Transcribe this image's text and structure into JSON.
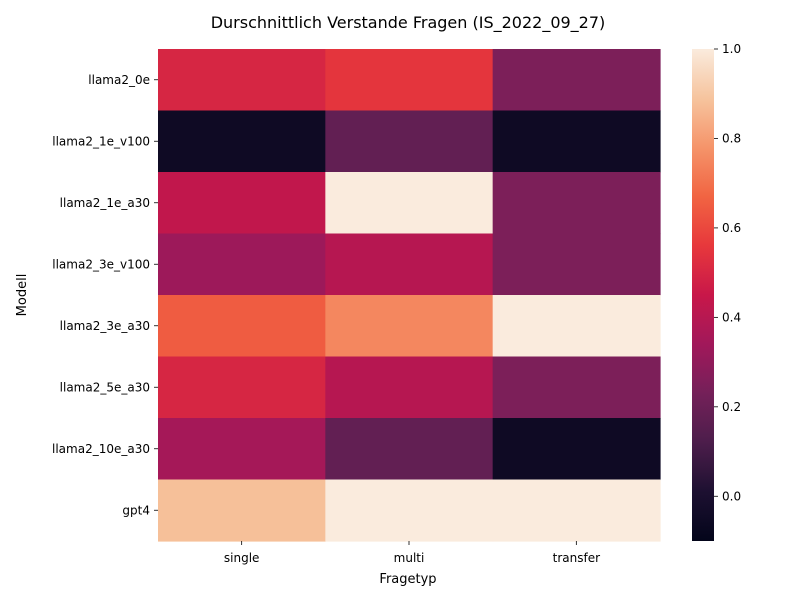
{
  "chart_data": {
    "type": "heatmap",
    "title": "Durschnittlich Verstande Fragen (IS_2022_09_27)",
    "xlabel": "Fragetyp",
    "ylabel": "Modell",
    "columns": [
      "single",
      "multi",
      "transfer"
    ],
    "rows": [
      "llama2_0e",
      "llama2_1e_v100",
      "llama2_1e_a30",
      "llama2_3e_v100",
      "llama2_3e_a30",
      "llama2_5e_a30",
      "llama2_10e_a30",
      "gpt4"
    ],
    "values": [
      [
        0.5,
        0.55,
        0.25
      ],
      [
        -0.05,
        0.18,
        -0.05
      ],
      [
        0.43,
        1.0,
        0.25
      ],
      [
        0.33,
        0.4,
        0.25
      ],
      [
        0.65,
        0.75,
        1.0
      ],
      [
        0.5,
        0.4,
        0.25
      ],
      [
        0.35,
        0.18,
        -0.05
      ],
      [
        0.88,
        1.0,
        1.0
      ]
    ],
    "colorbar": {
      "vmin": -0.1,
      "vmax": 1.0,
      "ticks": [
        "0.0",
        "0.2",
        "0.4",
        "0.6",
        "0.8",
        "1.0"
      ],
      "colormap": "rocket"
    }
  }
}
